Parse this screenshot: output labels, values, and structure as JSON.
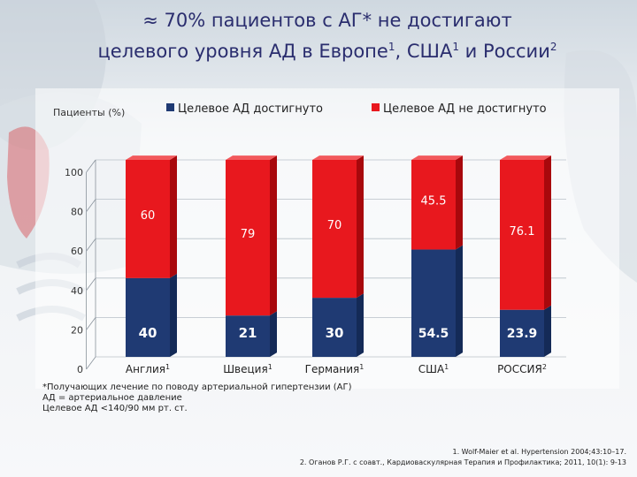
{
  "title": {
    "line1": "≈ 70% пациентов с АГ* не достигают",
    "line2_a": "целевого уровня АД в Европе",
    "sup1": "1",
    "line2_b": ", США",
    "sup2": "1",
    "line2_c": " и России",
    "sup3": "2"
  },
  "footnote": {
    "line1": "*Получающих лечение по поводу артериальной гипертензии (АГ)",
    "line2": "АД = артериальное давление",
    "line3": "Целевое АД <140/90 мм рт. ст."
  },
  "references": {
    "ref1": "1. Wolf-Maier et al. Hypertension 2004;43:10–17.",
    "ref2": "2. Оганов Р.Г. с соавт., Кардиоваскулярная Терапия и Профилактика; 2011, 10(1): 9-13"
  },
  "colors": {
    "achieved": "#1f3a73",
    "not_achieved": "#e8181e"
  },
  "chart_data": {
    "type": "bar",
    "stacked": true,
    "ylabel": "Пациенты (%)",
    "ylim": [
      0,
      100
    ],
    "yticks": [
      "0",
      "20",
      "40",
      "60",
      "80",
      "100"
    ],
    "categories": [
      {
        "label": "Англия",
        "sup": "1"
      },
      {
        "label": "Швеция",
        "sup": "1"
      },
      {
        "label": "Германия",
        "sup": "1"
      },
      {
        "label": "США",
        "sup": "1"
      },
      {
        "label": "РОССИЯ",
        "sup": "2"
      }
    ],
    "series": [
      {
        "name": "Целевое АД достигнуто",
        "values": [
          40,
          21,
          30,
          54.5,
          23.9
        ],
        "labels": [
          "40",
          "21",
          "30",
          "54.5",
          "23.9"
        ]
      },
      {
        "name": "Целевое АД не достигнуто",
        "values": [
          60,
          79,
          70,
          45.5,
          76.1
        ],
        "labels": [
          "60",
          "79",
          "70",
          "45.5",
          "76.1"
        ]
      }
    ],
    "legend": "top"
  }
}
